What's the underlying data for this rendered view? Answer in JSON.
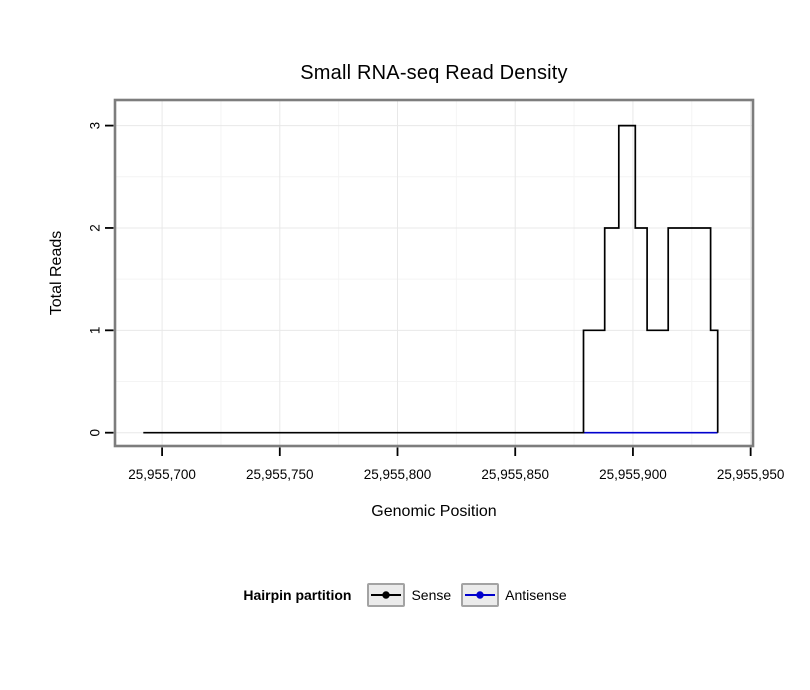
{
  "chart_data": {
    "type": "line",
    "step": true,
    "title": "Small RNA-seq Read Density",
    "xlabel": "Genomic Position",
    "ylabel": "Total Reads",
    "xlim": [
      25955680,
      25955951
    ],
    "ylim": [
      -0.13,
      3.25
    ],
    "grid": true,
    "x_ticks": [
      {
        "value": 25955700,
        "label": "25,955,700"
      },
      {
        "value": 25955750,
        "label": "25,955,750"
      },
      {
        "value": 25955800,
        "label": "25,955,800"
      },
      {
        "value": 25955850,
        "label": "25,955,850"
      },
      {
        "value": 25955900,
        "label": "25,955,900"
      },
      {
        "value": 25955950,
        "label": "25,955,950"
      }
    ],
    "y_ticks": [
      {
        "value": 0,
        "label": "0"
      },
      {
        "value": 1,
        "label": "1"
      },
      {
        "value": 2,
        "label": "2"
      },
      {
        "value": 3,
        "label": "3"
      }
    ],
    "legend": {
      "title": "Hairpin partition",
      "position": "bottom"
    },
    "series": [
      {
        "name": "Sense",
        "color": "#000000",
        "points": [
          [
            25955692,
            0
          ],
          [
            25955879,
            0
          ],
          [
            25955879,
            1
          ],
          [
            25955888,
            1
          ],
          [
            25955888,
            2
          ],
          [
            25955894,
            2
          ],
          [
            25955894,
            3
          ],
          [
            25955901,
            3
          ],
          [
            25955901,
            2
          ],
          [
            25955906,
            2
          ],
          [
            25955906,
            1
          ],
          [
            25955915,
            1
          ],
          [
            25955915,
            2
          ],
          [
            25955933,
            2
          ],
          [
            25955933,
            1
          ],
          [
            25955936,
            1
          ],
          [
            25955936,
            0
          ]
        ]
      },
      {
        "name": "Antisense",
        "color": "#0000CD",
        "points": [
          [
            25955879,
            0
          ],
          [
            25955936,
            0
          ]
        ]
      }
    ],
    "style": {
      "panel_border_color": "#7d7d7d",
      "major_grid_color": "#e8e8e8",
      "minor_grid_color": "#f4f4f4",
      "tick_color": "#000000"
    }
  }
}
